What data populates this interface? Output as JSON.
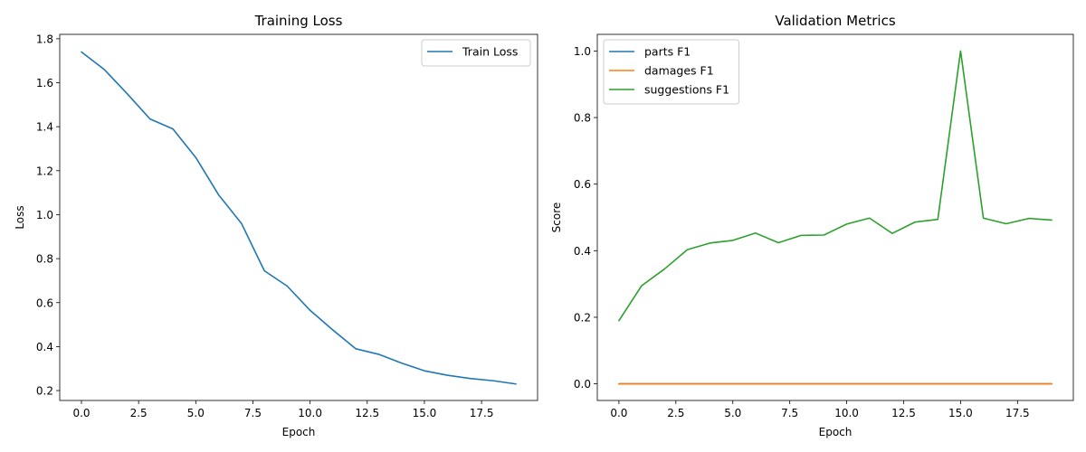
{
  "chart_data": [
    {
      "type": "line",
      "title": "Training Loss",
      "xlabel": "Epoch",
      "ylabel": "Loss",
      "xlim": [
        -0.95,
        19.95
      ],
      "ylim": [
        0.155,
        1.82
      ],
      "xticks": [
        0,
        2.5,
        5,
        7.5,
        10,
        12.5,
        15,
        17.5
      ],
      "xtick_labels": [
        "0.0",
        "2.5",
        "5.0",
        "7.5",
        "10.0",
        "12.5",
        "15.0",
        "17.5"
      ],
      "yticks": [
        0.2,
        0.4,
        0.6,
        0.8,
        1.0,
        1.2,
        1.4,
        1.6,
        1.8
      ],
      "ytick_labels": [
        "0.2",
        "0.4",
        "0.6",
        "0.8",
        "1.0",
        "1.2",
        "1.4",
        "1.6",
        "1.8"
      ],
      "grid": false,
      "legend_position": "top-right",
      "x": [
        0,
        1,
        2,
        3,
        4,
        5,
        6,
        7,
        8,
        9,
        10,
        11,
        12,
        13,
        14,
        15,
        16,
        17,
        18,
        19
      ],
      "series": [
        {
          "name": "Train Loss",
          "color": "#1f77b4",
          "values": [
            1.74,
            1.66,
            1.55,
            1.435,
            1.39,
            1.26,
            1.09,
            0.96,
            0.745,
            0.675,
            0.565,
            0.475,
            0.39,
            0.365,
            0.325,
            0.29,
            0.27,
            0.255,
            0.245,
            0.23
          ]
        }
      ]
    },
    {
      "type": "line",
      "title": "Validation Metrics",
      "xlabel": "Epoch",
      "ylabel": "Score",
      "xlim": [
        -0.95,
        19.95
      ],
      "ylim": [
        -0.05,
        1.05
      ],
      "xticks": [
        0,
        2.5,
        5,
        7.5,
        10,
        12.5,
        15,
        17.5
      ],
      "xtick_labels": [
        "0.0",
        "2.5",
        "5.0",
        "7.5",
        "10.0",
        "12.5",
        "15.0",
        "17.5"
      ],
      "yticks": [
        0.0,
        0.2,
        0.4,
        0.6,
        0.8,
        1.0
      ],
      "ytick_labels": [
        "0.0",
        "0.2",
        "0.4",
        "0.6",
        "0.8",
        "1.0"
      ],
      "grid": false,
      "legend_position": "top-left",
      "x": [
        0,
        1,
        2,
        3,
        4,
        5,
        6,
        7,
        8,
        9,
        10,
        11,
        12,
        13,
        14,
        15,
        16,
        17,
        18,
        19
      ],
      "series": [
        {
          "name": "parts F1",
          "color": "#1f77b4",
          "values": [
            0,
            0,
            0,
            0,
            0,
            0,
            0,
            0,
            0,
            0,
            0,
            0,
            0,
            0,
            0,
            0,
            0,
            0,
            0,
            0
          ]
        },
        {
          "name": "damages F1",
          "color": "#ff7f0e",
          "values": [
            0,
            0,
            0,
            0,
            0,
            0,
            0,
            0,
            0,
            0,
            0,
            0,
            0,
            0,
            0,
            0,
            0,
            0,
            0,
            0
          ]
        },
        {
          "name": "suggestions F1",
          "color": "#2ca02c",
          "values": [
            0.19,
            0.295,
            0.345,
            0.403,
            0.423,
            0.431,
            0.453,
            0.424,
            0.446,
            0.447,
            0.48,
            0.498,
            0.452,
            0.486,
            0.494,
            1.0,
            0.498,
            0.481,
            0.497,
            0.492
          ]
        }
      ]
    }
  ]
}
